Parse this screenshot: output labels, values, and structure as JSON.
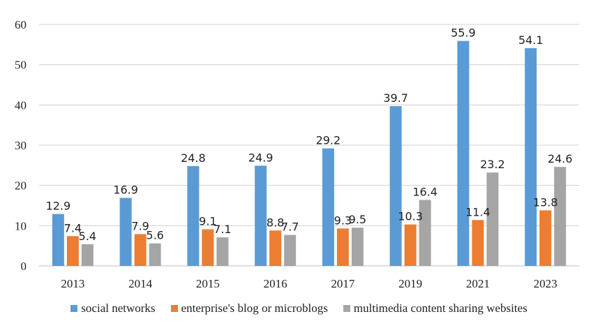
{
  "chart_data": {
    "type": "bar",
    "title": "",
    "xlabel": "",
    "ylabel": "",
    "ylim": [
      0,
      60
    ],
    "yticks": [
      0,
      10,
      20,
      30,
      40,
      50,
      60
    ],
    "grid": true,
    "legend_position": "bottom",
    "categories": [
      "2013",
      "2014",
      "2015",
      "2016",
      "2017",
      "2019",
      "2021",
      "2023"
    ],
    "series": [
      {
        "name": "social networks",
        "color": "#5b9bd5",
        "values": [
          12.9,
          16.9,
          24.8,
          24.9,
          29.2,
          39.7,
          55.9,
          54.1
        ]
      },
      {
        "name": "enterprise's blog or microblogs",
        "color": "#ed7d31",
        "values": [
          7.4,
          7.9,
          9.1,
          8.8,
          9.3,
          10.3,
          11.4,
          13.8
        ]
      },
      {
        "name": "multimedia content sharing websites",
        "color": "#a5a5a5",
        "values": [
          5.4,
          5.6,
          7.1,
          7.7,
          9.5,
          16.4,
          23.2,
          24.6
        ]
      }
    ]
  }
}
